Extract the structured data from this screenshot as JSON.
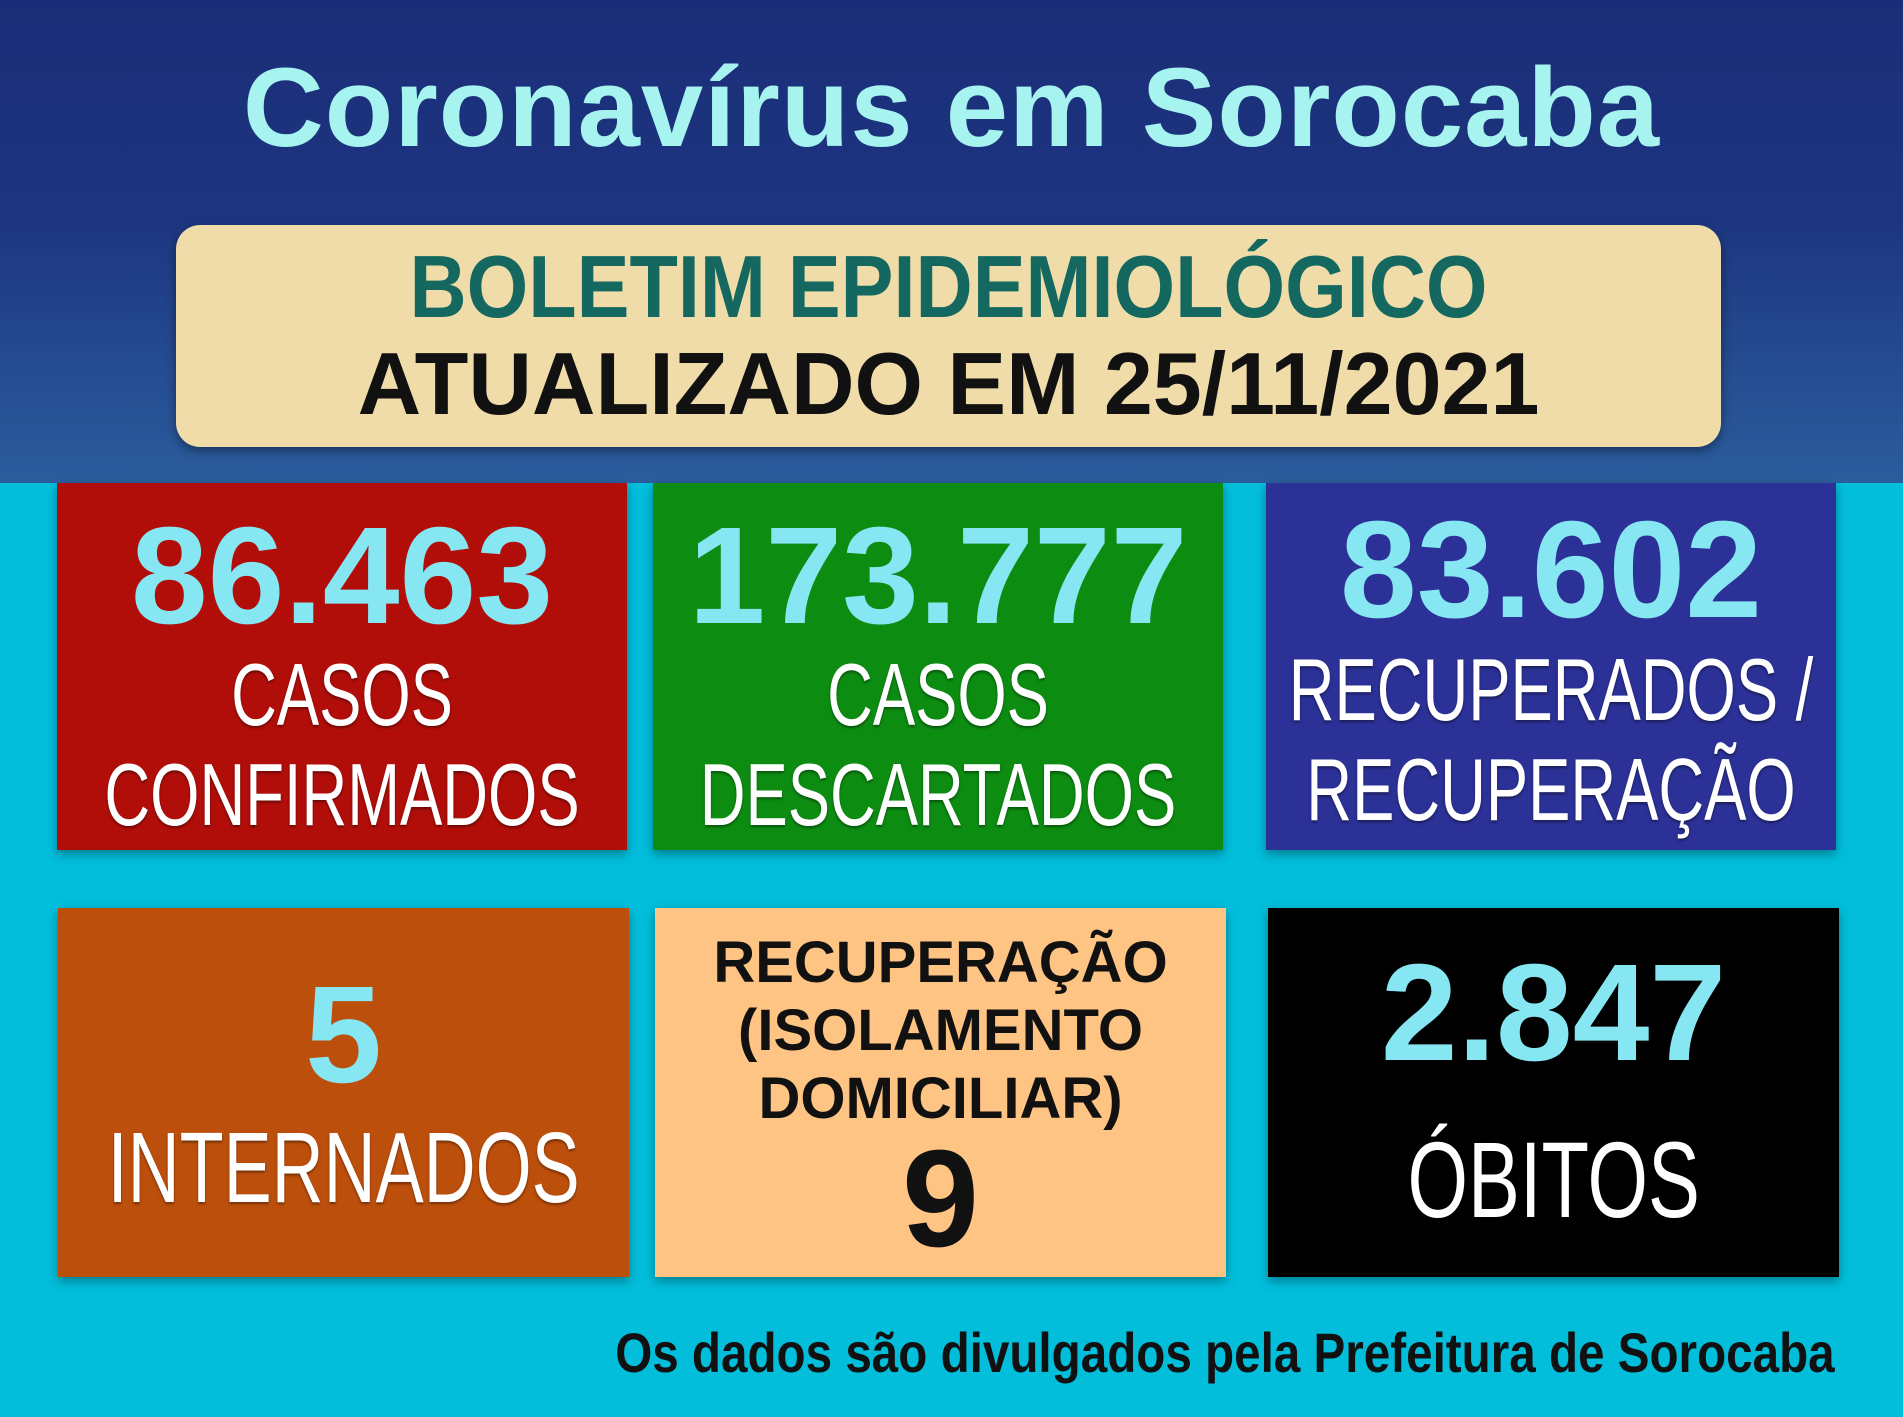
{
  "title": "Coronavírus em Sorocaba",
  "bulletin": {
    "heading": "BOLETIM EPIDEMIOLÓGICO",
    "updated": "ATUALIZADO EM 25/11/2021"
  },
  "cards": [
    {
      "value": "86.463",
      "line1": "CASOS",
      "line2": "CONFIRMADOS",
      "color": "#b10e0a"
    },
    {
      "value": "173.777",
      "line1": "CASOS",
      "line2": "DESCARTADOS",
      "color": "#0d8c12"
    },
    {
      "value": "83.602",
      "line1": "RECUPERADOS /",
      "line2": "RECUPERAÇÃO",
      "color": "#2b3196"
    },
    {
      "value": "5",
      "line1": "INTERNADOS",
      "color": "#bd4f0c"
    },
    {
      "value": "9",
      "line1": "RECUPERAÇÃO",
      "line2": "(ISOLAMENTO",
      "line3": "DOMICILIAR)",
      "color": "#fec484"
    },
    {
      "value": "2.847",
      "line1": "ÓBITOS",
      "color": "#000000"
    }
  ],
  "footer": "Os dados são divulgados pela Prefeitura de Sorocaba"
}
